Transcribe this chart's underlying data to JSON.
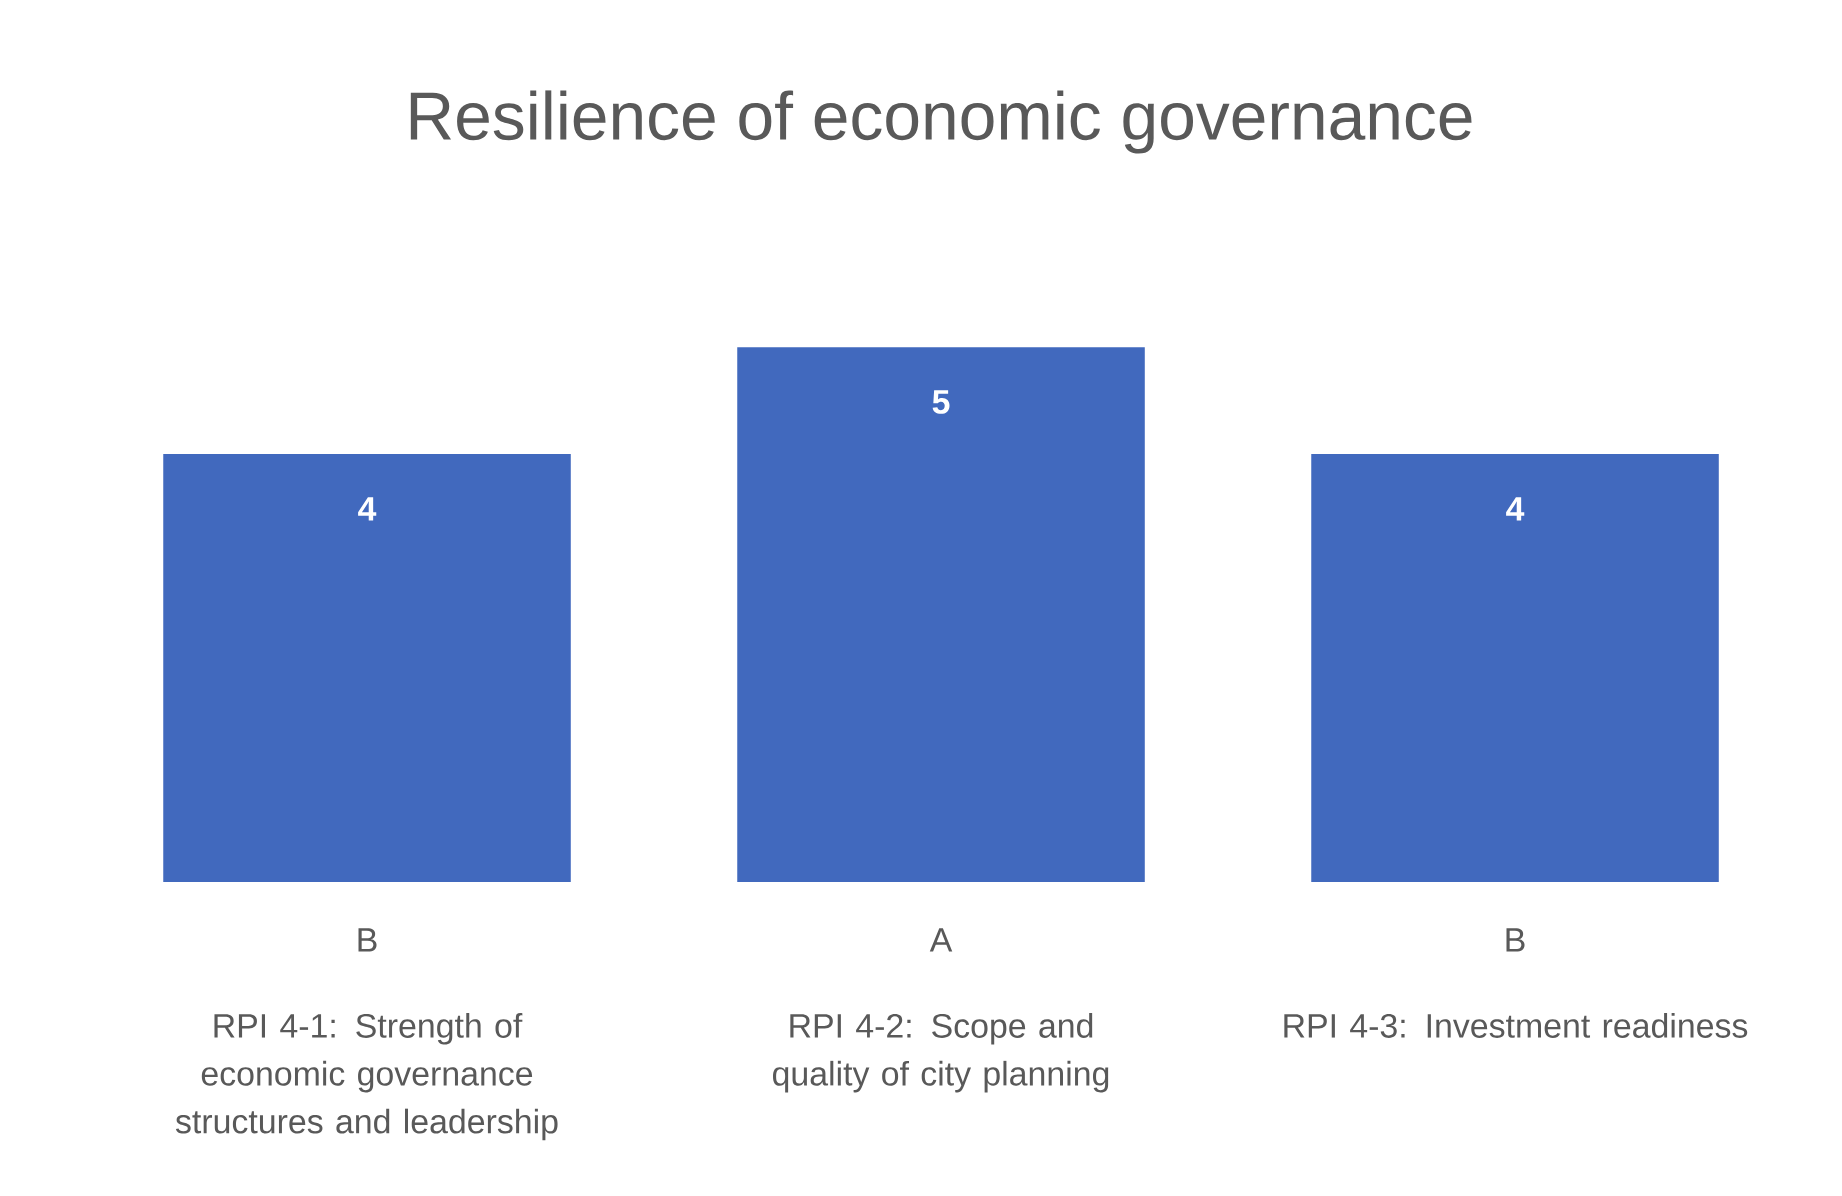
{
  "chart_data": {
    "type": "bar",
    "title": "Resilience of economic governance",
    "categories": [
      "RPI 4-1: Strength of economic governance structures and leadership",
      "RPI 4-2: Scope and quality of city planning",
      "RPI 4-3: Investment readiness"
    ],
    "values": [
      4,
      5,
      4
    ],
    "color": "#4169be",
    "data_labels": true,
    "annotations": [
      "B",
      "A",
      "B"
    ]
  }
}
